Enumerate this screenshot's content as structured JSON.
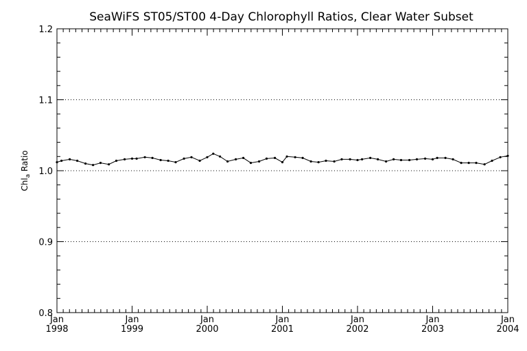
{
  "chart_data": {
    "type": "line",
    "title": "SeaWiFS ST05/ST00 4-Day Chlorophyll Ratios, Clear Water Subset",
    "ylabel_main": "Chl",
    "ylabel_sub": "a",
    "ylabel_rest": " Ratio",
    "xlabel": "",
    "ylim": [
      0.8,
      1.2
    ],
    "xlim": [
      1998.0,
      2004.0
    ],
    "yticks": [
      {
        "value": 0.8,
        "label": "0.8"
      },
      {
        "value": 0.9,
        "label": "0.9"
      },
      {
        "value": 1.0,
        "label": "1.0"
      },
      {
        "value": 1.1,
        "label": "1.1"
      },
      {
        "value": 1.2,
        "label": "1.2"
      }
    ],
    "xticks": [
      {
        "value": 1998,
        "month": "Jan",
        "year": "1998"
      },
      {
        "value": 1999,
        "month": "Jan",
        "year": "1999"
      },
      {
        "value": 2000,
        "month": "Jan",
        "year": "2000"
      },
      {
        "value": 2001,
        "month": "Jan",
        "year": "2001"
      },
      {
        "value": 2002,
        "month": "Jan",
        "year": "2002"
      },
      {
        "value": 2003,
        "month": "Jan",
        "year": "2003"
      },
      {
        "value": 2004,
        "month": "Jan",
        "year": "2004"
      }
    ],
    "dotted_grid_at": [
      0.9,
      1.0,
      1.1
    ],
    "x": [
      1998.0,
      1998.06,
      1998.17,
      1998.27,
      1998.38,
      1998.48,
      1998.58,
      1998.69,
      1998.79,
      1998.9,
      1999.0,
      1999.06,
      1999.17,
      1999.27,
      1999.38,
      1999.48,
      1999.58,
      1999.69,
      1999.79,
      1999.9,
      2000.0,
      2000.08,
      2000.17,
      2000.27,
      2000.38,
      2000.48,
      2000.58,
      2000.69,
      2000.79,
      2000.9,
      2001.0,
      2001.06,
      2001.17,
      2001.27,
      2001.38,
      2001.48,
      2001.58,
      2001.69,
      2001.79,
      2001.9,
      2002.0,
      2002.06,
      2002.17,
      2002.27,
      2002.38,
      2002.48,
      2002.58,
      2002.69,
      2002.79,
      2002.9,
      2003.0,
      2003.06,
      2003.17,
      2003.27,
      2003.38,
      2003.48,
      2003.58,
      2003.69,
      2003.79,
      2003.9,
      2004.0
    ],
    "y": [
      1.012,
      1.014,
      1.016,
      1.014,
      1.01,
      1.008,
      1.011,
      1.009,
      1.014,
      1.016,
      1.017,
      1.017,
      1.019,
      1.018,
      1.015,
      1.014,
      1.012,
      1.017,
      1.019,
      1.014,
      1.019,
      1.024,
      1.02,
      1.013,
      1.016,
      1.018,
      1.011,
      1.013,
      1.017,
      1.018,
      1.012,
      1.02,
      1.019,
      1.018,
      1.013,
      1.012,
      1.014,
      1.013,
      1.016,
      1.016,
      1.015,
      1.016,
      1.018,
      1.016,
      1.013,
      1.016,
      1.015,
      1.015,
      1.016,
      1.017,
      1.016,
      1.018,
      1.018,
      1.016,
      1.011,
      1.011,
      1.011,
      1.009,
      1.014,
      1.019,
      1.021
    ]
  }
}
